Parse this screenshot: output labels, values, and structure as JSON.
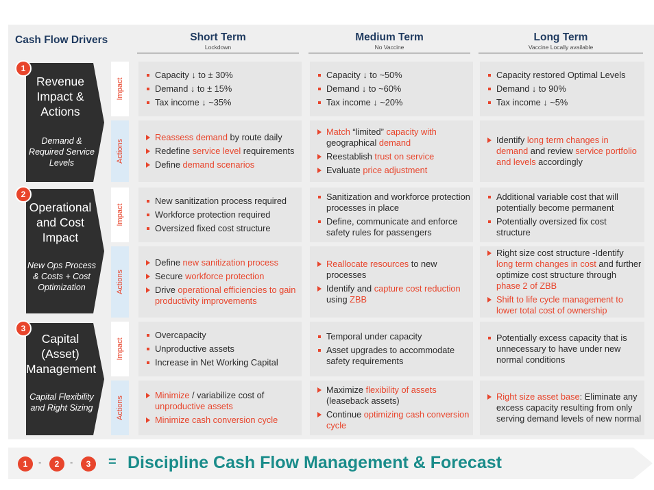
{
  "header": {
    "title": "Cash Flow Drivers",
    "columns": [
      {
        "title": "Short Term",
        "subtitle": "Lockdown"
      },
      {
        "title": "Medium Term",
        "subtitle": "No Vaccine"
      },
      {
        "title": "Long Term",
        "subtitle": "Vaccine Locally available"
      }
    ]
  },
  "side_labels": {
    "impact": "Impact",
    "actions": "Actions"
  },
  "drivers": [
    {
      "number": "1",
      "title": "Revenue Impact & Actions",
      "subtitle": "Demand & Required Service Levels",
      "impact": [
        [
          "Capacity ↓ to ± 30%",
          "Demand ↓ to ± 15%",
          "Tax income ↓ ~35%"
        ],
        [
          "Capacity ↓ to ~50%",
          "Demand ↓ to ~60%",
          "Tax income ↓ ~20%"
        ],
        [
          "Capacity restored Optimal Levels",
          "Demand ↓ to 90%",
          "Tax income ↓ ~5%"
        ]
      ],
      "actions": [
        [
          "Reassess demand by route daily",
          "Redefine service level requirements",
          "Define demand scenarios"
        ],
        [
          "Match “limited” capacity with geographical demand",
          "Reestablish trust on service",
          "Evaluate price adjustment"
        ],
        [
          "Identify long term changes in demand and review service portfolio and levels accordingly"
        ]
      ]
    },
    {
      "number": "2",
      "title": "Operational and Cost Impact",
      "subtitle": "New Ops Process & Costs + Cost Optimization",
      "impact": [
        [
          "New sanitization process required",
          "Workforce protection required",
          "Oversized fixed cost structure"
        ],
        [
          "Sanitization and workforce protection processes in place",
          "Define, communicate and enforce safety rules for passengers"
        ],
        [
          "Additional variable cost that will potentially become permanent",
          "Potentially oversized fix cost structure"
        ]
      ],
      "actions": [
        [
          "Define new sanitization process",
          "Secure workforce protection",
          "Drive operational efficiencies to gain productivity improvements"
        ],
        [
          "Reallocate resources to new processes",
          "Identify and capture cost reduction using ZBB"
        ],
        [
          "Right size cost structure -Identify long term changes in cost and further optimize cost structure through phase 2 of ZBB",
          "Shift to life cycle management to lower total cost of ownership"
        ]
      ]
    },
    {
      "number": "3",
      "title": "Capital (Asset) Management",
      "subtitle": "Capital Flexibility and Right Sizing",
      "impact": [
        [
          "Overcapacity",
          "Unproductive assets",
          "Increase in Net Working Capital"
        ],
        [
          "Temporal under capacity",
          "Asset upgrades to accommodate safety requirements"
        ],
        [
          "Potentially excess capacity that is unnecessary to have under new normal conditions"
        ]
      ],
      "actions": [
        [
          "Minimize / variabilize cost of unproductive assets",
          "Minimize cash conversion cycle"
        ],
        [
          "Maximize flexibility of assets (leaseback assets)",
          "Continue optimizing cash conversion cycle"
        ],
        [
          "Right size asset base: Eliminate any excess capacity resulting from only serving demand levels of new normal"
        ]
      ]
    }
  ],
  "footer": {
    "numbers": [
      "1",
      "2",
      "3"
    ],
    "dash": "-",
    "equals": "=",
    "text": "Discipline Cash Flow Management & Forecast"
  },
  "colors": {
    "accent": "#e8452c",
    "navy": "#1f3a5f",
    "teal": "#1a8c8a",
    "dark_box": "#2f2f2f"
  }
}
